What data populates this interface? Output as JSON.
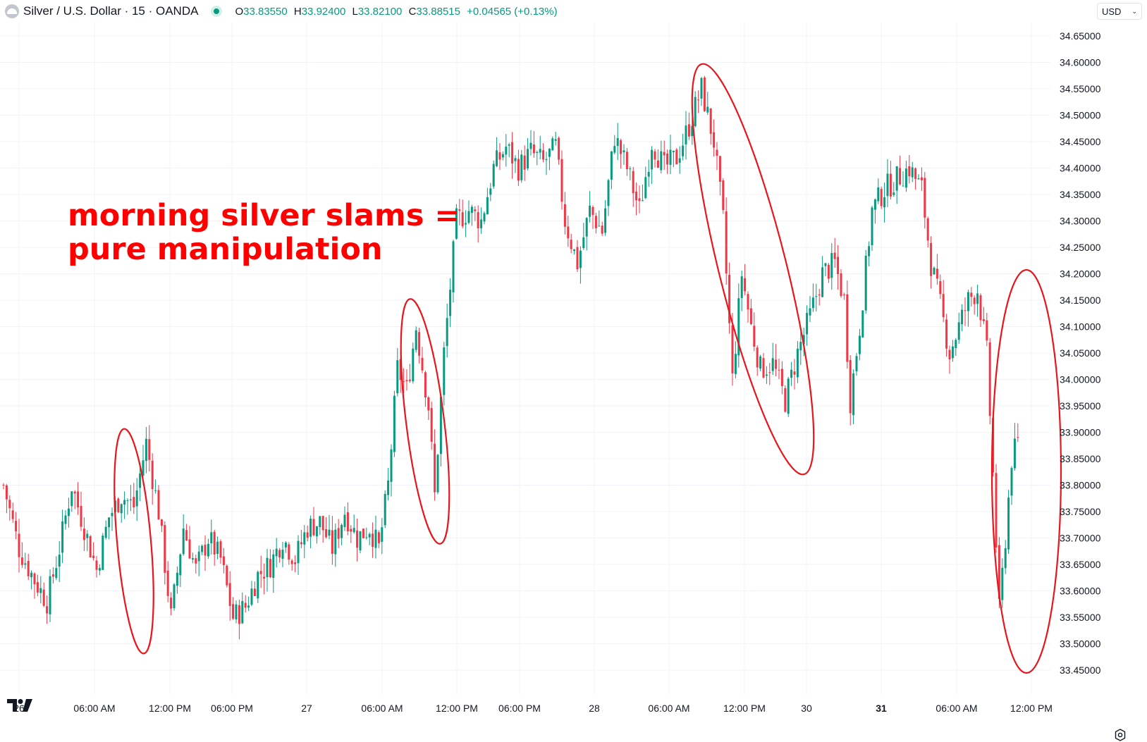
{
  "header": {
    "symbol_title": "Silver / U.S. Dollar · 15 · OANDA",
    "ohlc": [
      {
        "label": "O",
        "value": "33.83550"
      },
      {
        "label": "H",
        "value": "33.92400"
      },
      {
        "label": "L",
        "value": "33.82100"
      },
      {
        "label": "C",
        "value": "33.88515"
      }
    ],
    "change": "+0.04565 (+0.13%)",
    "currency": "USD"
  },
  "annotation": {
    "line1": "morning silver slams =",
    "line2": "pure manipulation"
  },
  "colors": {
    "up": "#089981",
    "down": "#f23645",
    "annotation": "#ff0000",
    "grid": "#f0f3fa"
  },
  "icons": [
    "symbol-icon",
    "status-dot-icon",
    "tradingview-logo-icon",
    "chevron-down-icon",
    "settings-icon"
  ],
  "chart_data": {
    "type": "candlestick",
    "x_tick_labels": [
      "26",
      "06:00 AM",
      "12:00 PM",
      "06:00 PM",
      "27",
      "06:00 AM",
      "12:00 PM",
      "06:00 PM",
      "28",
      "06:00 AM",
      "12:00 PM",
      "30",
      "31",
      "06:00 AM",
      "12:00 PM"
    ],
    "x_tick_bold": [
      false,
      false,
      false,
      false,
      false,
      false,
      false,
      false,
      false,
      false,
      false,
      false,
      true,
      false,
      false
    ],
    "y_tick_labels": [
      "34.65000",
      "34.60000",
      "34.55000",
      "34.50000",
      "34.45000",
      "34.40000",
      "34.35000",
      "34.30000",
      "34.25000",
      "34.20000",
      "34.15000",
      "34.10000",
      "34.05000",
      "34.00000",
      "33.95000",
      "33.90000",
      "33.85000",
      "33.80000",
      "33.75000",
      "33.70000",
      "33.65000",
      "33.60000",
      "33.55000",
      "33.50000",
      "33.45000"
    ],
    "ylim": [
      33.43,
      34.68
    ],
    "grid": true,
    "price_path_anchors": [
      [
        0,
        33.8
      ],
      [
        5,
        33.68
      ],
      [
        10,
        33.62
      ],
      [
        14,
        33.58
      ],
      [
        18,
        33.68
      ],
      [
        22,
        33.8
      ],
      [
        26,
        33.72
      ],
      [
        30,
        33.64
      ],
      [
        34,
        33.74
      ],
      [
        38,
        33.78
      ],
      [
        42,
        33.76
      ],
      [
        46,
        33.88
      ],
      [
        50,
        33.75
      ],
      [
        54,
        33.55
      ],
      [
        58,
        33.72
      ],
      [
        62,
        33.64
      ],
      [
        66,
        33.7
      ],
      [
        70,
        33.66
      ],
      [
        74,
        33.55
      ],
      [
        78,
        33.57
      ],
      [
        82,
        33.63
      ],
      [
        86,
        33.65
      ],
      [
        90,
        33.7
      ],
      [
        94,
        33.66
      ],
      [
        98,
        33.72
      ],
      [
        102,
        33.73
      ],
      [
        106,
        33.68
      ],
      [
        110,
        33.75
      ],
      [
        114,
        33.7
      ],
      [
        118,
        33.72
      ],
      [
        121,
        33.68
      ],
      [
        124,
        33.8
      ],
      [
        127,
        34.02
      ],
      [
        130,
        33.98
      ],
      [
        133,
        34.1
      ],
      [
        137,
        33.95
      ],
      [
        139,
        33.78
      ],
      [
        142,
        34.05
      ],
      [
        146,
        34.3
      ],
      [
        150,
        34.32
      ],
      [
        154,
        34.3
      ],
      [
        158,
        34.4
      ],
      [
        162,
        34.44
      ],
      [
        166,
        34.4
      ],
      [
        170,
        34.43
      ],
      [
        174,
        34.41
      ],
      [
        178,
        34.44
      ],
      [
        181,
        34.3
      ],
      [
        185,
        34.22
      ],
      [
        189,
        34.32
      ],
      [
        193,
        34.28
      ],
      [
        197,
        34.46
      ],
      [
        201,
        34.4
      ],
      [
        205,
        34.32
      ],
      [
        209,
        34.45
      ],
      [
        213,
        34.4
      ],
      [
        217,
        34.42
      ],
      [
        221,
        34.48
      ],
      [
        225,
        34.55
      ],
      [
        229,
        34.45
      ],
      [
        232,
        34.3
      ],
      [
        235,
        34.0
      ],
      [
        238,
        34.2
      ],
      [
        241,
        34.1
      ],
      [
        244,
        34.02
      ],
      [
        248,
        34.03
      ],
      [
        252,
        33.96
      ],
      [
        256,
        34.05
      ],
      [
        260,
        34.12
      ],
      [
        264,
        34.2
      ],
      [
        268,
        34.22
      ],
      [
        271,
        34.15
      ],
      [
        273,
        33.96
      ],
      [
        276,
        34.1
      ],
      [
        280,
        34.32
      ],
      [
        284,
        34.36
      ],
      [
        288,
        34.38
      ],
      [
        292,
        34.4
      ],
      [
        296,
        34.36
      ],
      [
        299,
        34.22
      ],
      [
        302,
        34.14
      ],
      [
        305,
        34.05
      ],
      [
        308,
        34.1
      ],
      [
        311,
        34.15
      ],
      [
        314,
        34.17
      ],
      [
        317,
        34.05
      ],
      [
        319,
        33.82
      ],
      [
        321,
        33.56
      ],
      [
        323,
        33.7
      ],
      [
        325,
        33.85
      ],
      [
        327,
        33.88
      ]
    ],
    "candle_count": 328,
    "candle_spacing": 4.4,
    "annotation_ellipses": 4
  }
}
